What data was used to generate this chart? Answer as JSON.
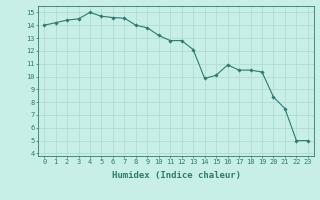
{
  "x": [
    0,
    1,
    2,
    3,
    4,
    5,
    6,
    7,
    8,
    9,
    10,
    11,
    12,
    13,
    14,
    15,
    16,
    17,
    18,
    19,
    20,
    21,
    22,
    23
  ],
  "y": [
    14.0,
    14.2,
    14.4,
    14.5,
    15.0,
    14.7,
    14.6,
    14.55,
    14.0,
    13.8,
    13.2,
    12.8,
    12.8,
    12.1,
    9.85,
    10.1,
    10.9,
    10.5,
    10.5,
    10.35,
    8.4,
    7.5,
    5.0,
    5.0
  ],
  "line_color": "#2d7b6f",
  "marker": "D",
  "marker_size": 1.8,
  "bg_color": "#c8eee8",
  "grid_major_color": "#b0ddd6",
  "grid_minor_color": "#d8f0ec",
  "xlabel": "Humidex (Indice chaleur)",
  "xlim": [
    -0.5,
    23.5
  ],
  "ylim": [
    3.8,
    15.5
  ],
  "yticks": [
    4,
    5,
    6,
    7,
    8,
    9,
    10,
    11,
    12,
    13,
    14,
    15
  ],
  "xticks": [
    0,
    1,
    2,
    3,
    4,
    5,
    6,
    7,
    8,
    9,
    10,
    11,
    12,
    13,
    14,
    15,
    16,
    17,
    18,
    19,
    20,
    21,
    22,
    23
  ],
  "tick_label_fontsize": 5.0,
  "xlabel_fontsize": 6.5,
  "tick_color": "#2d7b6f",
  "spine_color": "#2d7b6f",
  "linewidth": 0.8,
  "marker_edge_width": 0.3
}
